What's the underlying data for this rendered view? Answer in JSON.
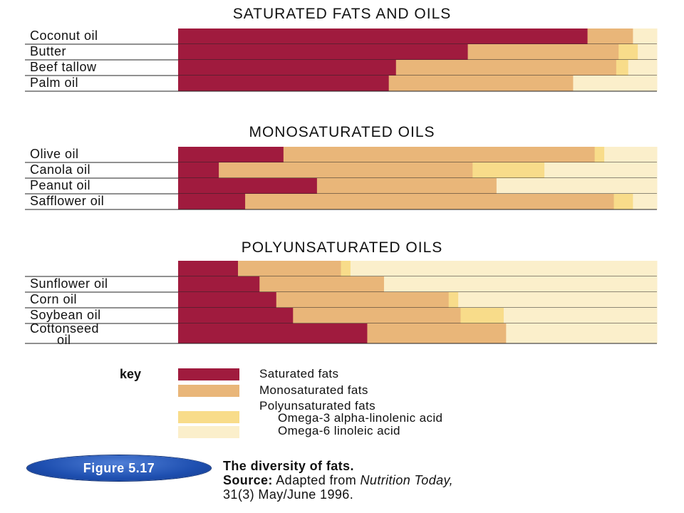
{
  "chart_data": {
    "type": "bar",
    "stacked": true,
    "normalized": true,
    "colors": {
      "saturated": "#a01b3e",
      "monosaturated": "#e9b679",
      "omega3": "#f8dc8a",
      "omega6": "#fbefcb"
    },
    "groups": [
      {
        "title": "SATURATED FATS AND OILS",
        "rows": [
          {
            "label": "Coconut oil",
            "lines": [
              "Coconut oil"
            ],
            "values": [
              85.5,
              9.5,
              0,
              5.0
            ]
          },
          {
            "label": "Butter",
            "lines": [
              "Butter"
            ],
            "values": [
              60.5,
              31.5,
              4.0,
              4.0
            ]
          },
          {
            "label": "Beef tallow",
            "lines": [
              "Beef tallow"
            ],
            "values": [
              45.5,
              46.0,
              2.5,
              6.0
            ]
          },
          {
            "label": "Palm oil",
            "lines": [
              "Palm oil"
            ],
            "values": [
              44.0,
              38.5,
              0,
              17.5
            ]
          }
        ]
      },
      {
        "title": "MONOSATURATED OILS",
        "rows": [
          {
            "label": "Olive oil",
            "lines": [
              "Olive oil"
            ],
            "values": [
              22.0,
              65.0,
              2.0,
              11.0
            ]
          },
          {
            "label": "Canola oil",
            "lines": [
              "Canola oil"
            ],
            "values": [
              8.5,
              53.0,
              15.0,
              23.5
            ]
          },
          {
            "label": "Peanut oil",
            "lines": [
              "Peanut oil"
            ],
            "values": [
              29.0,
              37.5,
              0,
              33.5
            ]
          },
          {
            "label": "Safflower oil",
            "lines": [
              "Safflower oil"
            ],
            "values": [
              14.0,
              77.0,
              4.0,
              5.0
            ]
          }
        ]
      },
      {
        "title": "POLYUNSATURATED OILS",
        "rows": [
          {
            "label": "",
            "lines": [],
            "values": [
              12.5,
              21.5,
              2.0,
              64.0
            ]
          },
          {
            "label": "Sunflower oil",
            "lines": [
              "Sunflower oil"
            ],
            "values": [
              17.0,
              26.0,
              0,
              57.0
            ]
          },
          {
            "label": "Corn oil",
            "lines": [
              "Corn oil"
            ],
            "values": [
              20.5,
              36.0,
              2.0,
              41.5
            ]
          },
          {
            "label": "Soybean oil",
            "lines": [
              "Soybean oil"
            ],
            "values": [
              24.0,
              35.0,
              9.0,
              32.0
            ]
          },
          {
            "label": "Cottonseed oil",
            "lines": [
              "Cottonseed",
              "oil"
            ],
            "values": [
              39.5,
              29.0,
              0,
              31.5
            ]
          }
        ]
      }
    ],
    "key": {
      "title": "key",
      "items": [
        {
          "label": "Saturated fats",
          "swatch": "saturated"
        },
        {
          "label": "Monosaturated fats",
          "swatch": "monosaturated"
        },
        {
          "label": "Polyunsaturated fats",
          "swatch": null
        },
        {
          "label": "Omega-3 alpha-linolenic acid",
          "swatch": "omega3"
        },
        {
          "label": "Omega-6 linoleic acid",
          "swatch": "omega6"
        }
      ]
    }
  },
  "figure": {
    "badge": "Figure 5.17",
    "title": "The diversity of fats.",
    "source_label": "Source:",
    "source_text_before": "Adapted from ",
    "source_italic": "Nutrition Today,",
    "source_line2": "31(3) May/June 1996."
  }
}
